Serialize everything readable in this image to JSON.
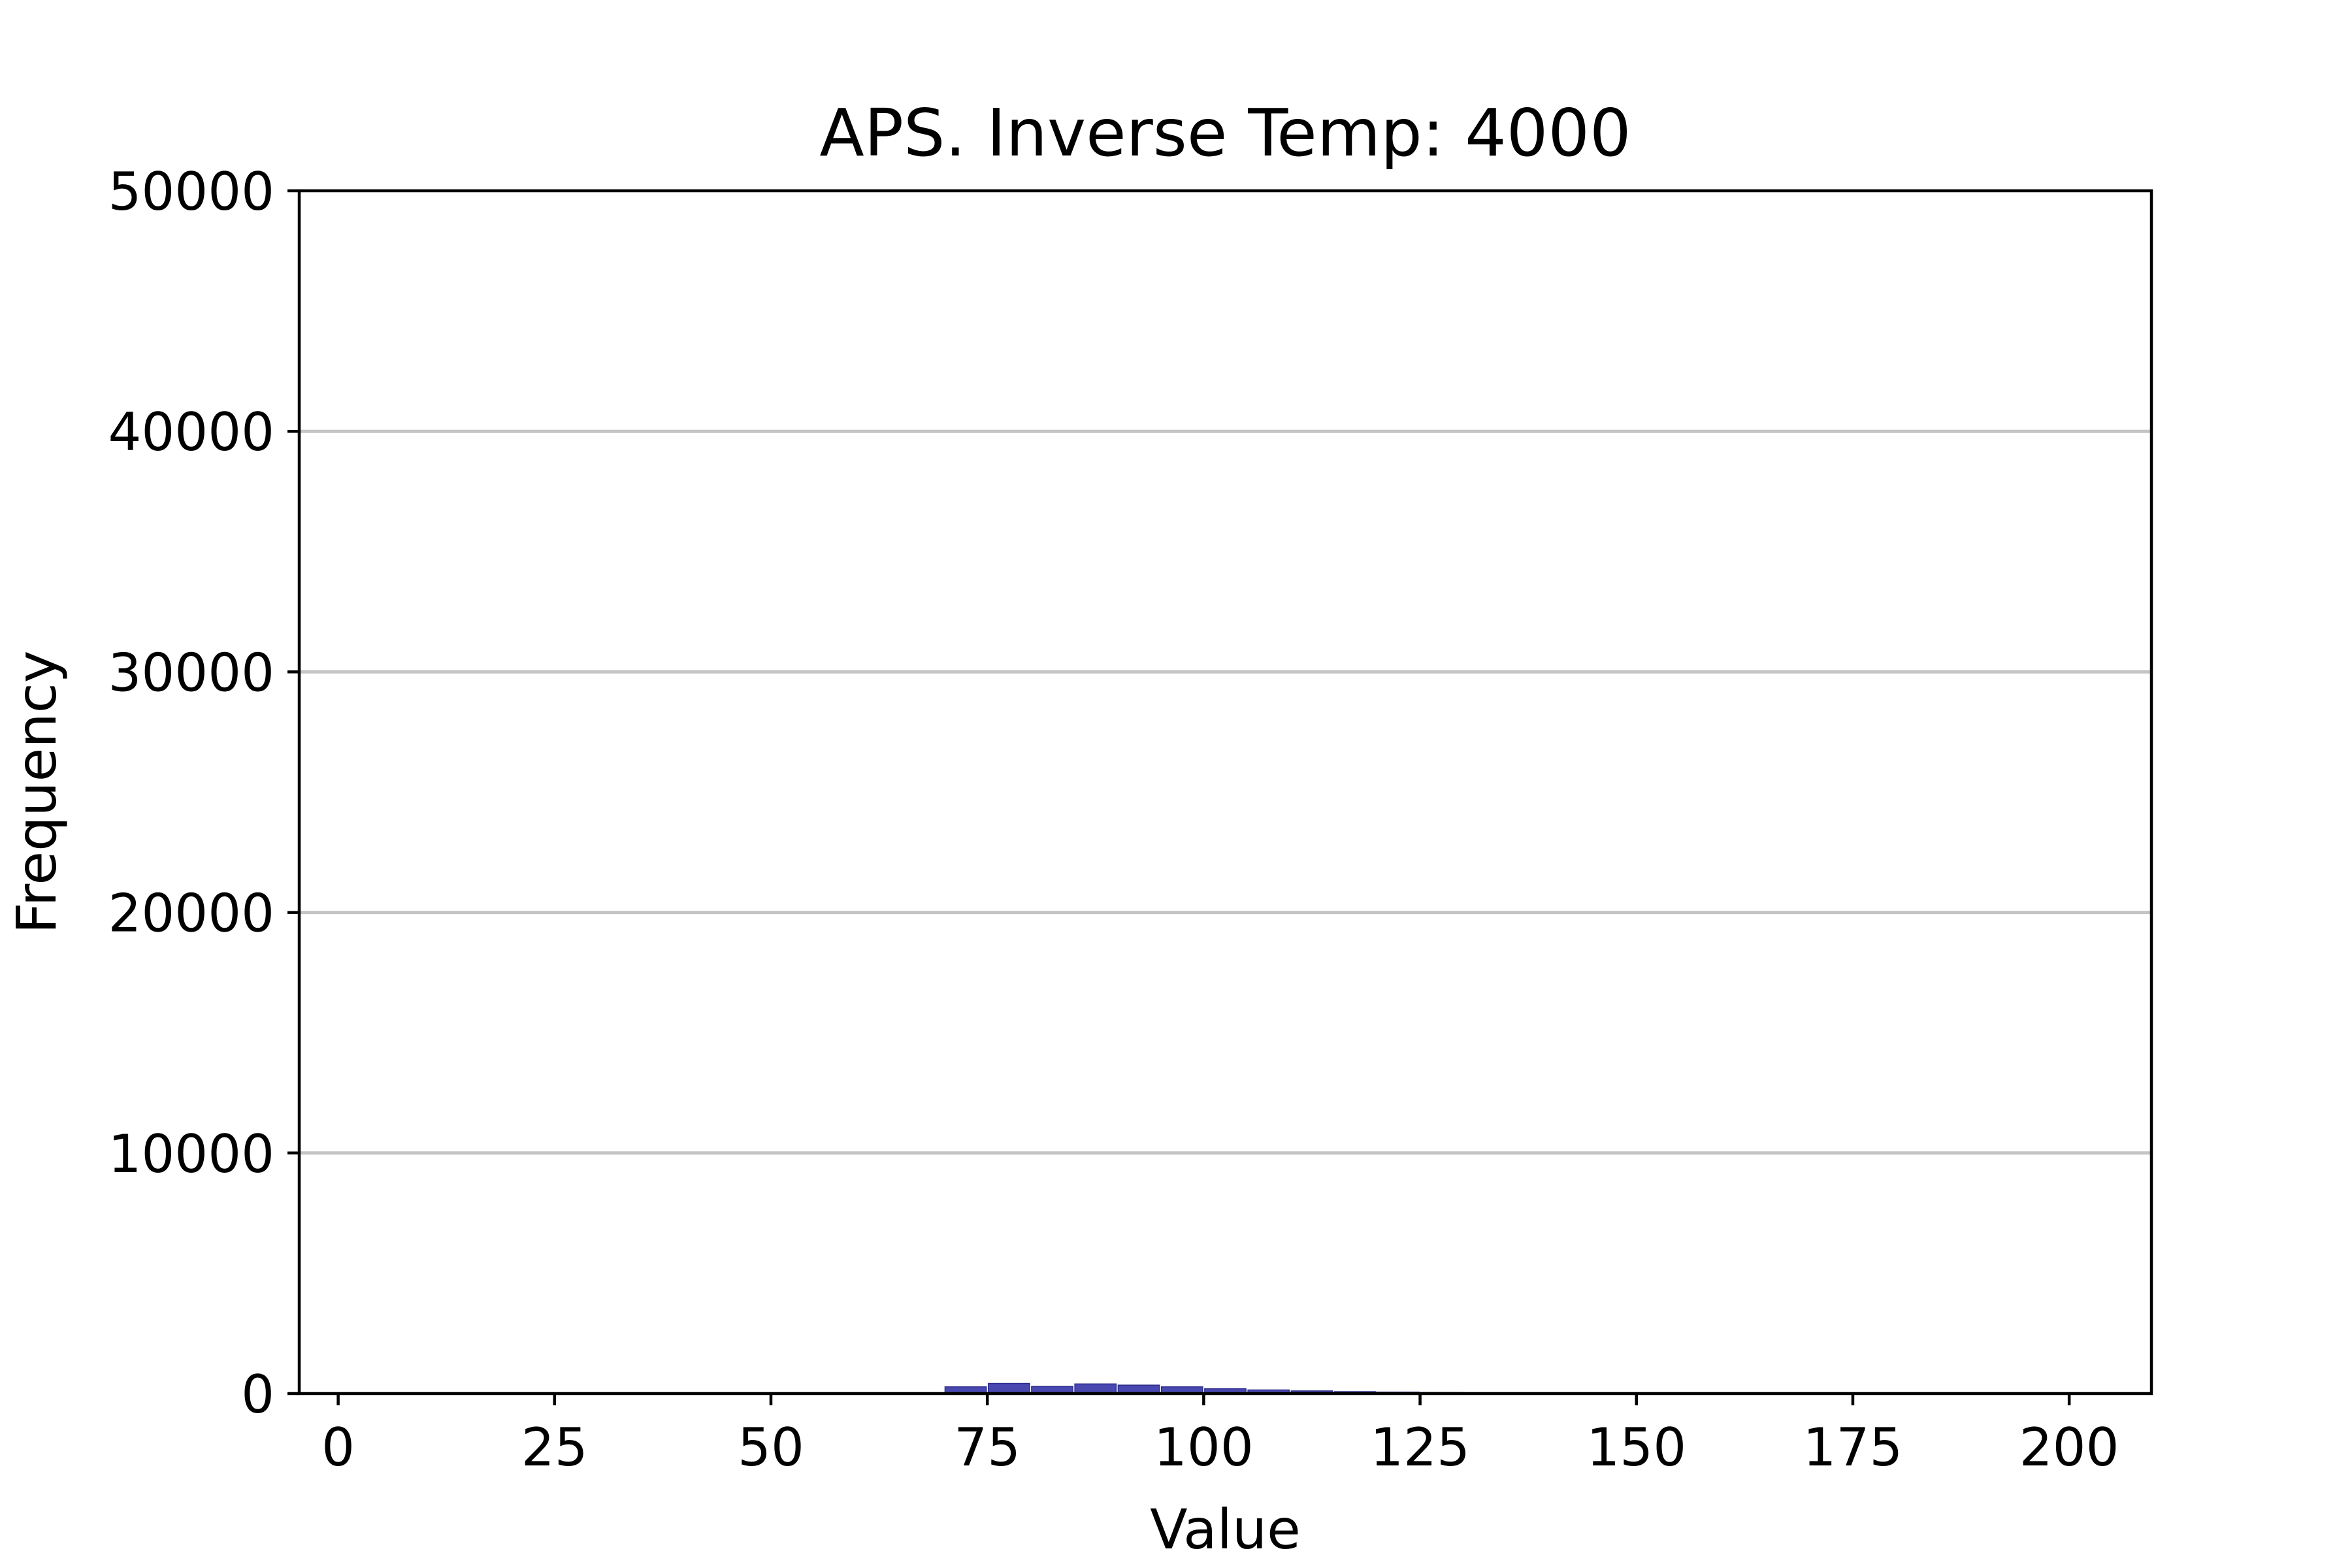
{
  "chart_data": {
    "type": "bar",
    "title": "APS. Inverse Temp: 4000",
    "xlabel": "Value",
    "ylabel": "Frequency",
    "xlim": [
      -4.5,
      209.5
    ],
    "ylim": [
      0,
      50000
    ],
    "xticks": [
      0,
      25,
      50,
      75,
      100,
      125,
      150,
      175,
      200
    ],
    "yticks": [
      0,
      10000,
      20000,
      30000,
      40000,
      50000
    ],
    "grid": "horizontal",
    "legend": "none",
    "bar_color": "#4848b0",
    "bin_width": 5,
    "bins": [
      {
        "x0": 70,
        "x1": 75,
        "value": 280
      },
      {
        "x0": 75,
        "x1": 80,
        "value": 420
      },
      {
        "x0": 80,
        "x1": 85,
        "value": 300
      },
      {
        "x0": 85,
        "x1": 90,
        "value": 400
      },
      {
        "x0": 90,
        "x1": 95,
        "value": 350
      },
      {
        "x0": 95,
        "x1": 100,
        "value": 280
      },
      {
        "x0": 100,
        "x1": 105,
        "value": 200
      },
      {
        "x0": 105,
        "x1": 110,
        "value": 150
      },
      {
        "x0": 110,
        "x1": 115,
        "value": 110
      },
      {
        "x0": 115,
        "x1": 120,
        "value": 80
      },
      {
        "x0": 120,
        "x1": 125,
        "value": 60
      },
      {
        "x0": 125,
        "x1": 130,
        "value": 40
      }
    ]
  }
}
